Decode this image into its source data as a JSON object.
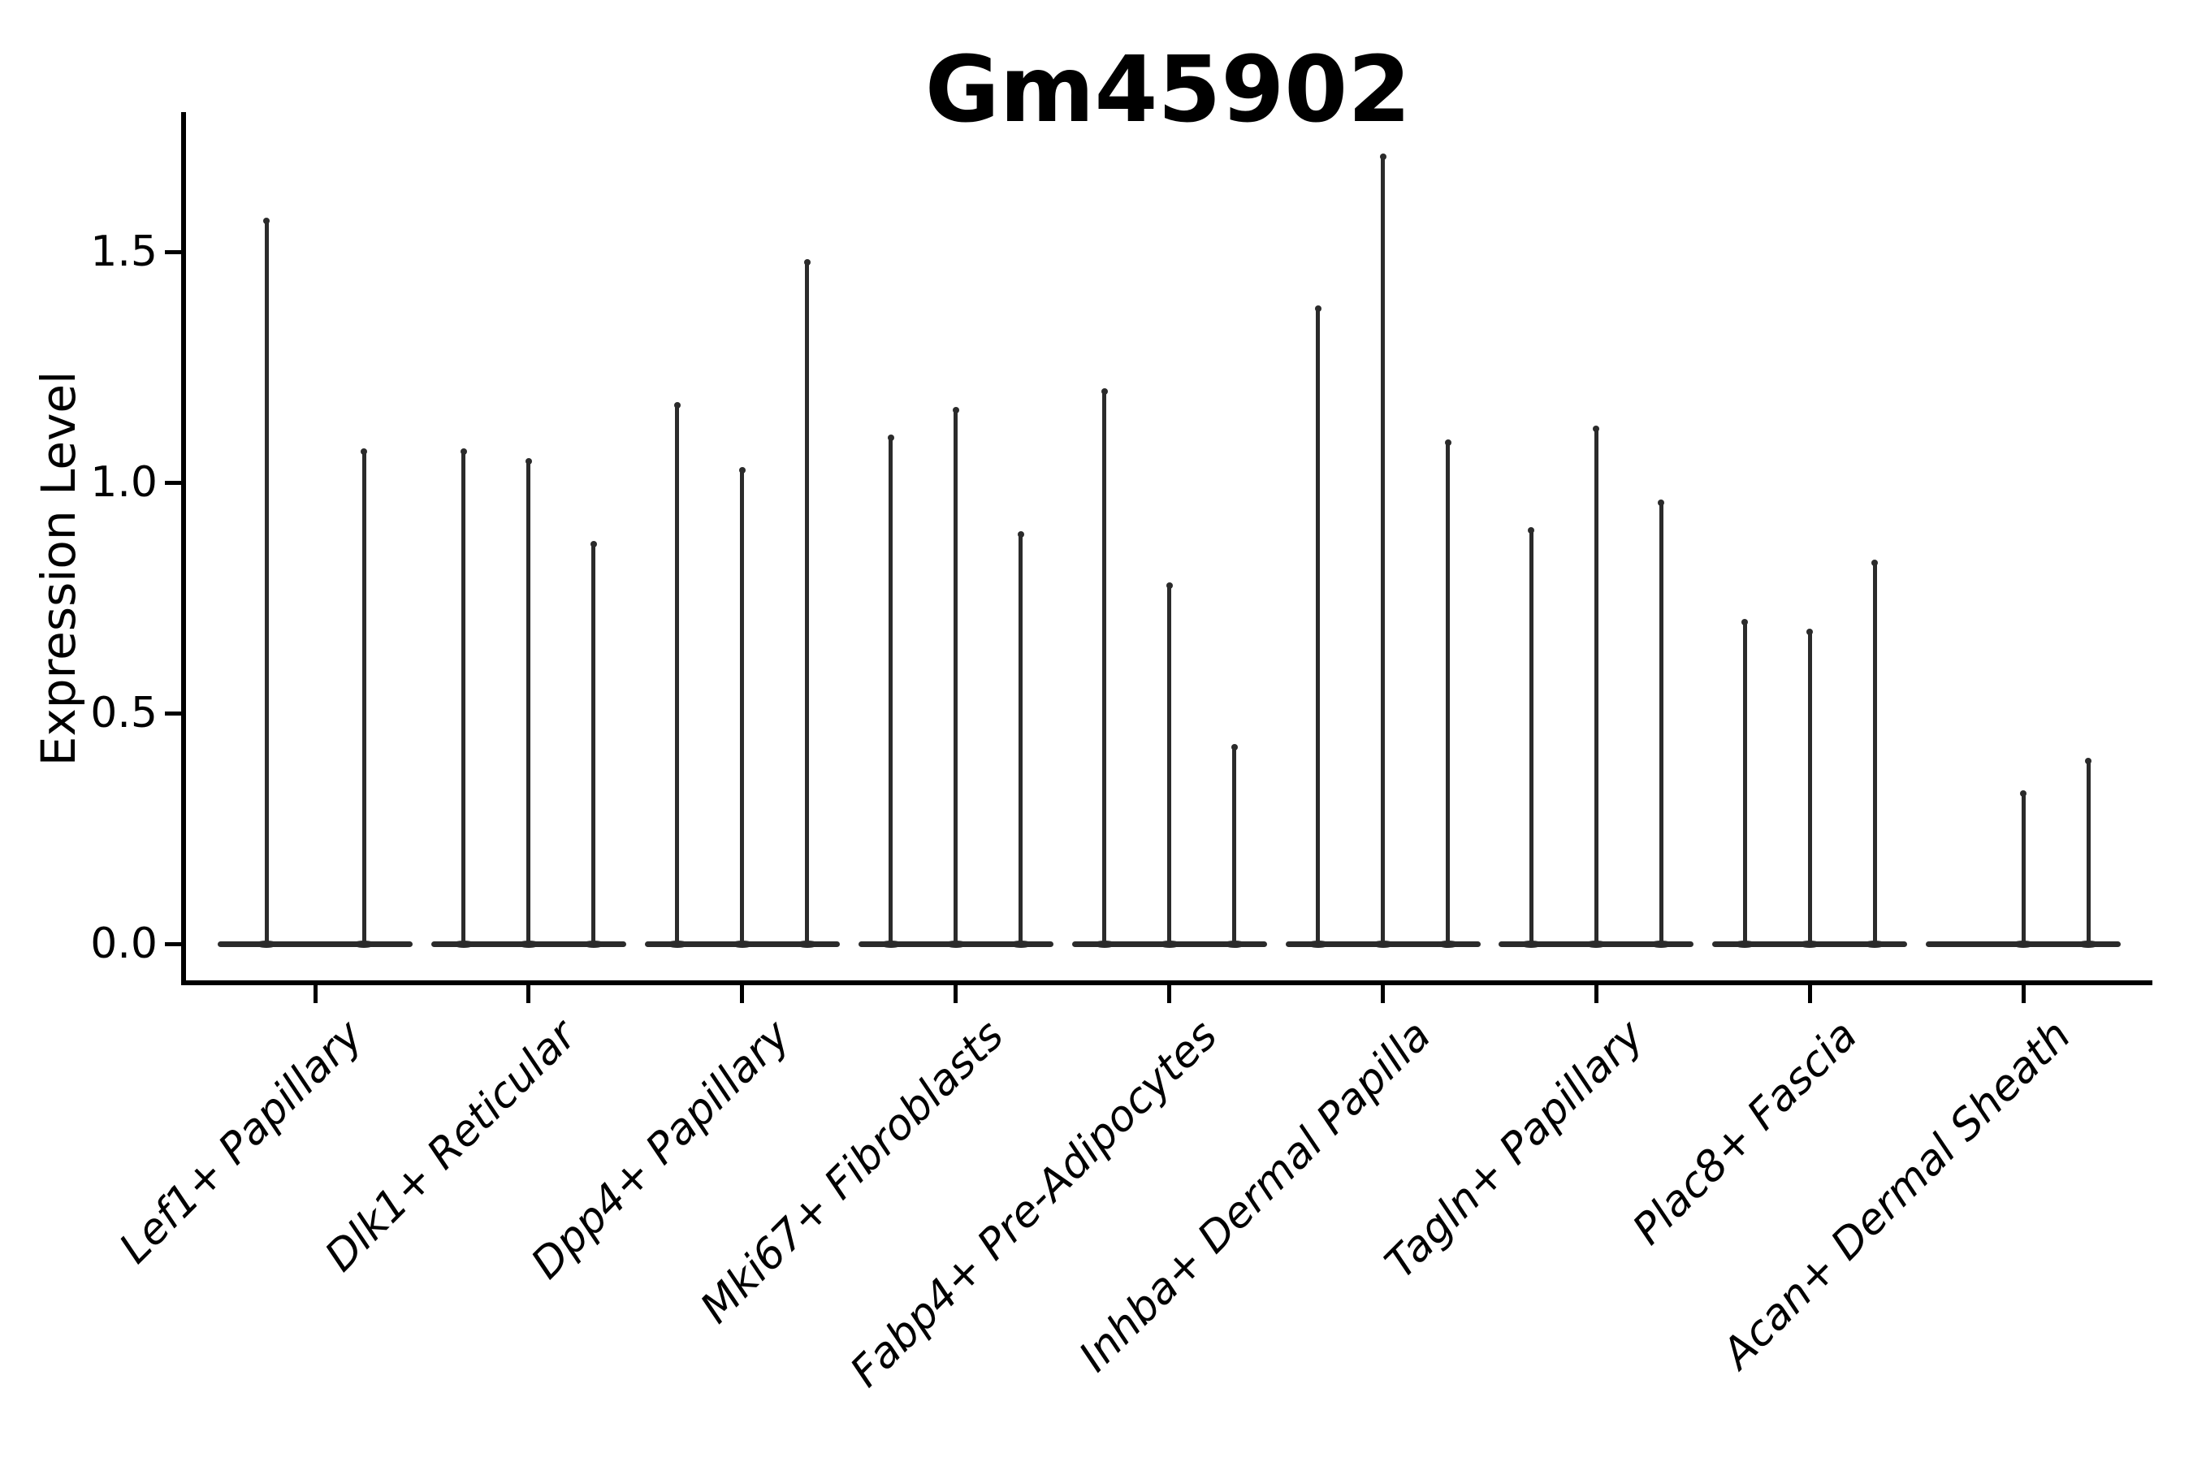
{
  "title": "Gm45902",
  "ylabel": "Expression Level",
  "chart_data": {
    "type": "violin",
    "title": "Gm45902",
    "xlabel": "",
    "ylabel": "Expression Level",
    "ylim": [
      -0.08,
      1.8
    ],
    "grid": false,
    "legend": "none",
    "ytick_labels": [
      "0.0",
      "0.5",
      "1.0",
      "1.5"
    ],
    "ytick_values": [
      0.0,
      0.5,
      1.0,
      1.5
    ],
    "violin_color": "#2b2b2b",
    "axis_color": "#000000",
    "categories": [
      "Lef1+ Papillary",
      "Dlk1+ Reticular",
      "Dpp4+ Papillary",
      "Mki67+ Fibroblasts",
      "Fabp4+ Pre-Adipocytes",
      "Inhba+ Dermal Papilla",
      "Tagln+ Papillary",
      "Plac8+ Fascia",
      "Acan+ Dermal Sheath"
    ],
    "groups": [
      {
        "label": "Lef1+ Papillary",
        "violin_maxima": [
          1.57,
          1.07
        ]
      },
      {
        "label": "Dlk1+ Reticular",
        "violin_maxima": [
          1.07,
          1.05,
          0.87
        ]
      },
      {
        "label": "Dpp4+ Papillary",
        "violin_maxima": [
          1.17,
          1.03,
          1.48
        ]
      },
      {
        "label": "Mki67+ Fibroblasts",
        "violin_maxima": [
          1.1,
          1.16,
          0.89
        ]
      },
      {
        "label": "Fabp4+ Pre-Adipocytes",
        "violin_maxima": [
          1.2,
          0.78,
          0.43
        ]
      },
      {
        "label": "Inhba+ Dermal Papilla",
        "violin_maxima": [
          1.38,
          1.71,
          1.09
        ]
      },
      {
        "label": "Tagln+ Papillary",
        "violin_maxima": [
          0.9,
          1.12,
          0.96
        ]
      },
      {
        "label": "Plac8+ Fascia",
        "violin_maxima": [
          0.7,
          0.68,
          0.83
        ]
      },
      {
        "label": "Acan+ Dermal Sheath",
        "violin_maxima": [
          0.0,
          0.33,
          0.4
        ]
      }
    ]
  }
}
